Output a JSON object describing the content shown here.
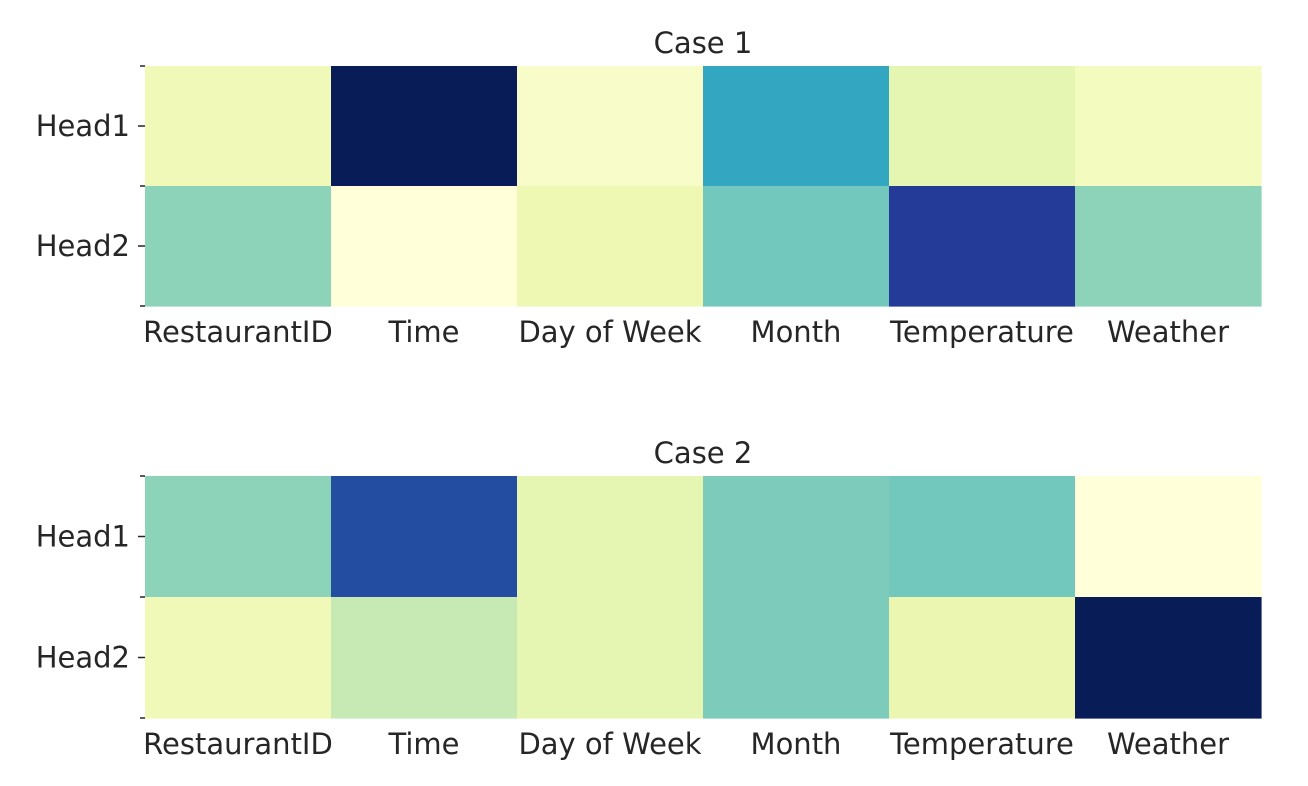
{
  "chart_data": [
    {
      "type": "heatmap",
      "title": "Case 1",
      "xlabel": "",
      "ylabel": "",
      "x_categories": [
        "RestaurantID",
        "Time",
        "Day of Week",
        "Month",
        "Temperature",
        "Weather"
      ],
      "y_categories": [
        "Head1",
        "Head2"
      ],
      "values": [
        [
          0.1,
          1.0,
          0.05,
          0.55,
          0.15,
          0.08
        ],
        [
          0.35,
          0.0,
          0.12,
          0.4,
          0.85,
          0.35
        ]
      ],
      "colormap": "YlGnBu",
      "colorbar": false,
      "grid": false
    },
    {
      "type": "heatmap",
      "title": "Case 2",
      "xlabel": "",
      "ylabel": "",
      "x_categories": [
        "RestaurantID",
        "Time",
        "Day of Week",
        "Month",
        "Temperature",
        "Weather"
      ],
      "y_categories": [
        "Head1",
        "Head2"
      ],
      "values": [
        [
          0.35,
          0.8,
          0.15,
          0.38,
          0.4,
          0.0
        ],
        [
          0.1,
          0.25,
          0.15,
          0.38,
          0.13,
          1.0
        ]
      ],
      "colormap": "YlGnBu",
      "colorbar": false,
      "grid": false
    }
  ]
}
